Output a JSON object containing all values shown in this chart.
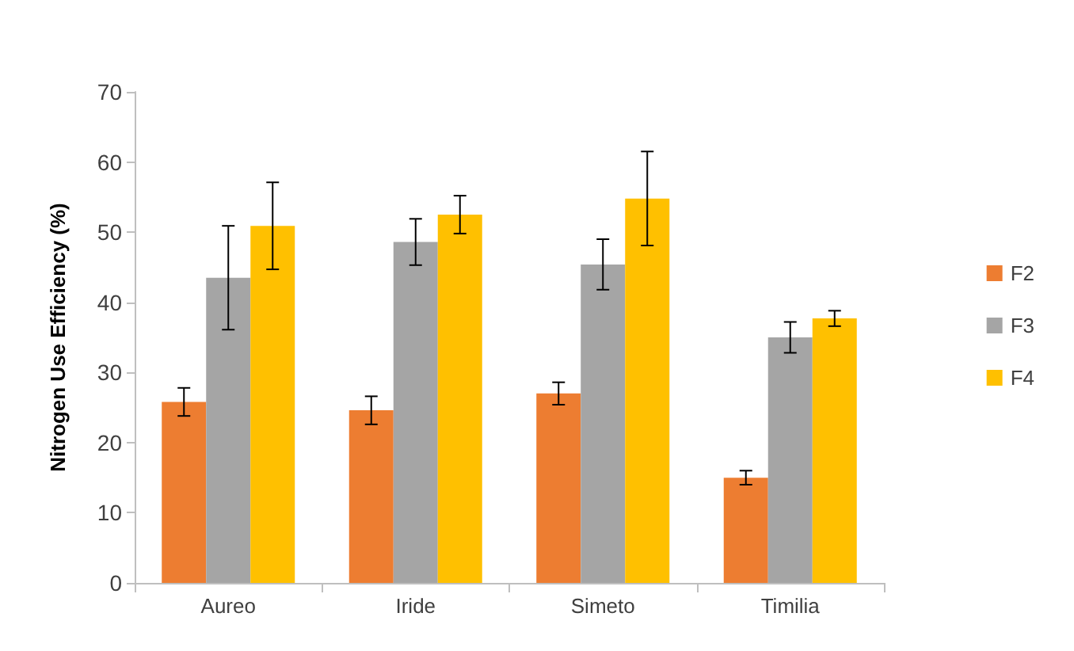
{
  "chart_data": {
    "type": "bar",
    "ylabel": "Nitrogen Use Efficiency (%)",
    "categories": [
      "Aureo",
      "Iride",
      "Simeto",
      "Timilia"
    ],
    "series": [
      {
        "name": "F2",
        "color": "#ed7d31",
        "values": [
          25.8,
          24.6,
          27,
          15
        ],
        "errors": [
          2,
          2,
          1.6,
          1
        ]
      },
      {
        "name": "F3",
        "color": "#a5a5a5",
        "values": [
          43.5,
          48.6,
          45.4,
          35
        ],
        "errors": [
          7.4,
          3.3,
          3.6,
          2.2
        ]
      },
      {
        "name": "F4",
        "color": "#ffc000",
        "values": [
          50.9,
          52.5,
          54.8,
          37.7
        ],
        "errors": [
          6.2,
          2.7,
          6.7,
          1.1
        ]
      }
    ],
    "ylim": [
      0,
      70
    ],
    "yticks": [
      0,
      10,
      20,
      30,
      40,
      50,
      60,
      70
    ],
    "grid": false,
    "legend": "right"
  }
}
